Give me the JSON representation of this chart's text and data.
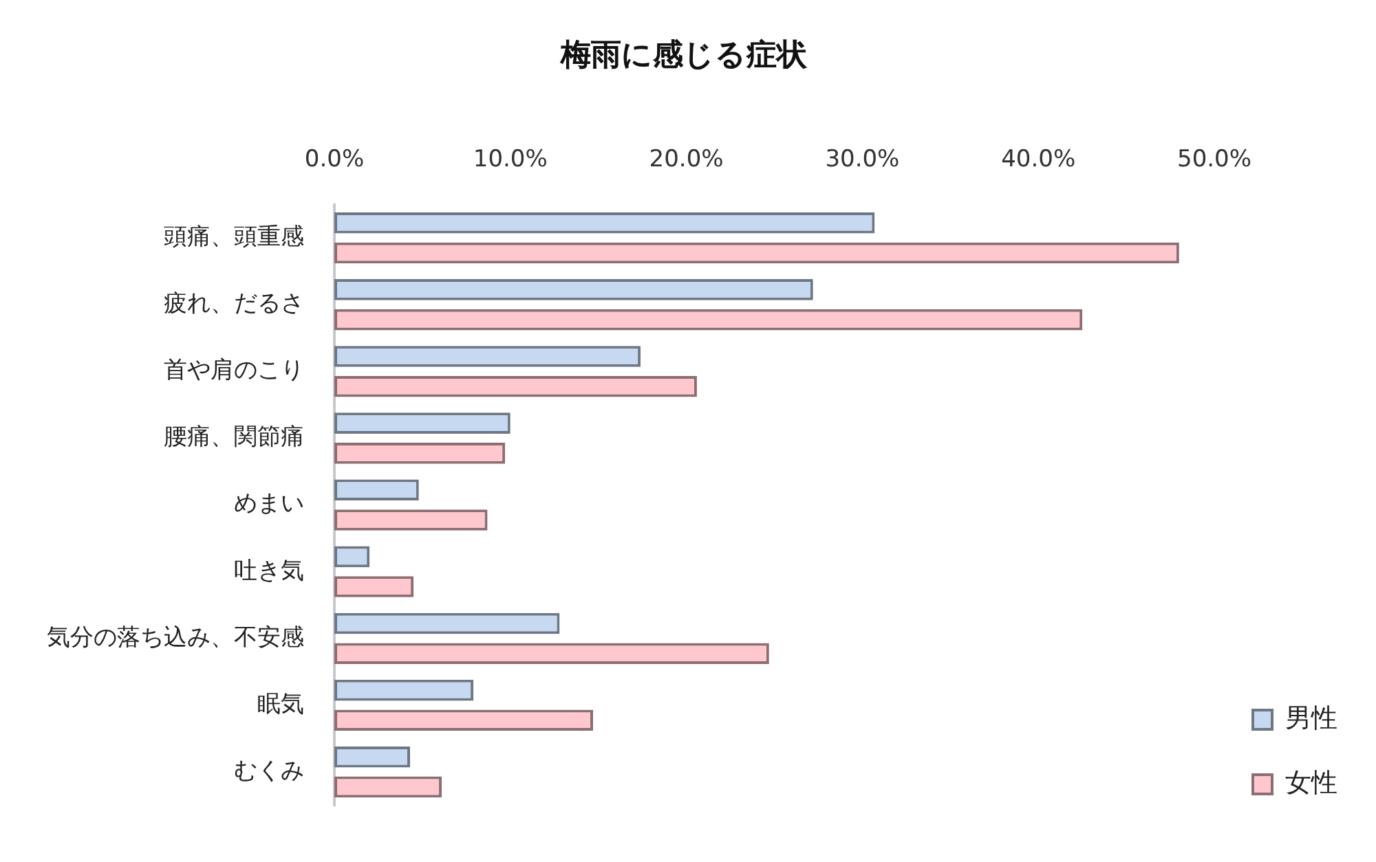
{
  "chart_data": {
    "type": "bar",
    "orientation": "horizontal",
    "title": "梅雨に感じる症状",
    "categories": [
      "頭痛、頭重感",
      "疲れ、だるさ",
      "首や肩のこり",
      "腰痛、関節痛",
      "めまい",
      "吐き気",
      "気分の落ち込み、不安感",
      "眠気",
      "むくみ"
    ],
    "series": [
      {
        "name": "男性",
        "color": "#c6d9f1",
        "values": [
          30.7,
          27.2,
          17.4,
          10.0,
          4.8,
          2.0,
          12.8,
          7.9,
          4.3
        ]
      },
      {
        "name": "女性",
        "color": "#ffc7ce",
        "values": [
          48.0,
          42.5,
          20.6,
          9.7,
          8.7,
          4.5,
          24.7,
          14.7,
          6.1
        ]
      }
    ],
    "xlim": [
      0,
      50
    ],
    "xticks": [
      {
        "value": 0,
        "label": "0.0%"
      },
      {
        "value": 10,
        "label": "10.0%"
      },
      {
        "value": 20,
        "label": "20.0%"
      },
      {
        "value": 30,
        "label": "30.0%"
      },
      {
        "value": 40,
        "label": "40.0%"
      },
      {
        "value": 50,
        "label": "50.0%"
      }
    ],
    "grid": false,
    "legend": "bottom right"
  }
}
